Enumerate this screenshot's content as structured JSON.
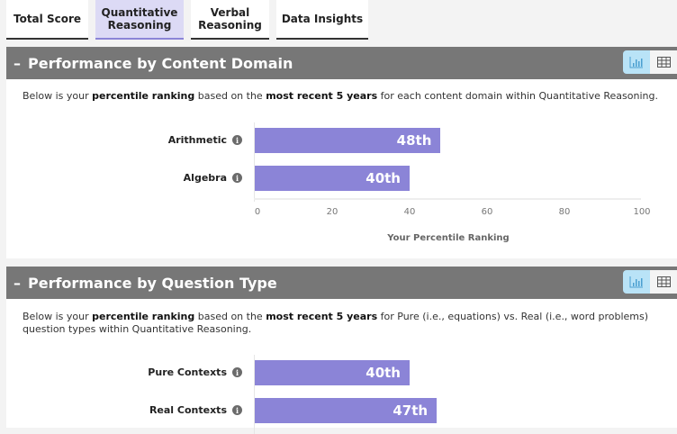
{
  "tabs": [
    {
      "label": "Total Score",
      "active": false
    },
    {
      "label": "Quantitative\nReasoning",
      "active": true
    },
    {
      "label": "Verbal\nReasoning",
      "active": false
    },
    {
      "label": "Data Insights",
      "active": false
    }
  ],
  "colors": {
    "header_bg": "#777777",
    "bar": "#8b84d7",
    "active_tab": "#dcdaf5",
    "toggle_active": "#b9e3f7"
  },
  "icons": {
    "collapse": "minus-icon",
    "chart_view": "bar-chart-icon",
    "table_view": "table-icon",
    "info": "info-icon"
  },
  "sections": [
    {
      "title": "Performance by Content Domain",
      "collapse_symbol": "–",
      "intro": {
        "p1": "Below is your ",
        "b1": "percentile ranking",
        "p2": " based on the ",
        "b2": "most recent 5 years",
        "p3": " for each content domain within Quantitative Reasoning."
      }
    },
    {
      "title": "Performance by Question Type",
      "collapse_symbol": "–",
      "intro": {
        "p1": "Below is your ",
        "b1": "percentile ranking",
        "p2": " based on the ",
        "b2": "most recent 5 years",
        "p3": " for Pure (i.e., equations) vs. Real (i.e., word problems) question types within Quantitative Reasoning."
      }
    }
  ],
  "chart_data": [
    {
      "type": "bar",
      "orientation": "horizontal",
      "categories": [
        "Arithmetic",
        "Algebra"
      ],
      "values": [
        48,
        40
      ],
      "data_labels": [
        "48th",
        "40th"
      ],
      "xlabel": "Your Percentile Ranking",
      "xlim": [
        0,
        100
      ],
      "xticks": [
        "0",
        "20",
        "40",
        "60",
        "80",
        "100"
      ],
      "grid": false
    },
    {
      "type": "bar",
      "orientation": "horizontal",
      "categories": [
        "Pure Contexts",
        "Real Contexts"
      ],
      "values": [
        40,
        47
      ],
      "data_labels": [
        "40th",
        "47th"
      ],
      "xlim": [
        0,
        100
      ],
      "grid": false
    }
  ]
}
